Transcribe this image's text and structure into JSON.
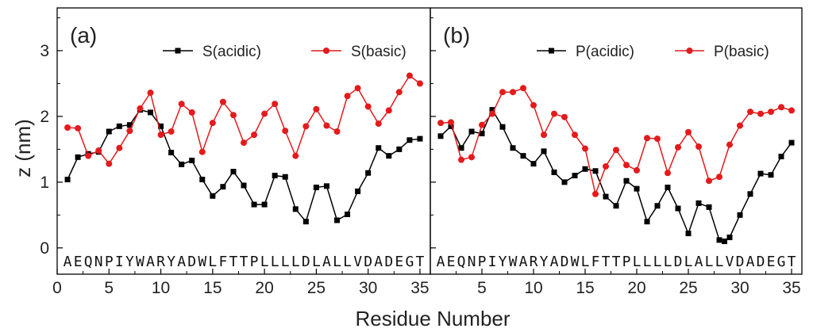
{
  "xlabel_shared": "Residue Number",
  "colors": {
    "acidic": "#000000",
    "basic": "#e41a1c",
    "frame": "#000000"
  },
  "chart_data": [
    {
      "type": "line",
      "panel_label": "(a)",
      "ylabel": "z (nm)",
      "xlim": [
        0,
        36
      ],
      "ylim": [
        -0.4,
        3.65
      ],
      "xticks": [
        0,
        5,
        10,
        15,
        20,
        25,
        30,
        35
      ],
      "yticks": [
        0,
        1,
        2,
        3
      ],
      "sequence": [
        "A",
        "E",
        "Q",
        "N",
        "P",
        "I",
        "Y",
        "W",
        "A",
        "R",
        "Y",
        "A",
        "D",
        "W",
        "L",
        "F",
        "T",
        "T",
        "P",
        "L",
        "L",
        "L",
        "L",
        "D",
        "L",
        "A",
        "L",
        "L",
        "V",
        "D",
        "A",
        "D",
        "E",
        "G",
        "T"
      ],
      "series": [
        {
          "name": "S(acidic)",
          "color": "#000000",
          "marker": "square",
          "x": [
            1,
            2,
            3,
            4,
            5,
            6,
            7,
            8,
            9,
            10,
            11,
            12,
            13,
            14,
            15,
            16,
            17,
            18,
            19,
            20,
            21,
            22,
            23,
            24,
            25,
            26,
            27,
            28,
            29,
            30,
            31,
            32,
            33,
            34,
            35
          ],
          "y": [
            1.04,
            1.38,
            1.43,
            1.46,
            1.77,
            1.85,
            1.87,
            2.1,
            2.06,
            1.85,
            1.45,
            1.27,
            1.33,
            1.04,
            0.79,
            0.93,
            1.16,
            0.95,
            0.66,
            0.66,
            1.1,
            1.08,
            0.59,
            0.4,
            0.92,
            0.94,
            0.42,
            0.51,
            0.86,
            1.14,
            1.52,
            1.4,
            1.5,
            1.64,
            1.66
          ]
        },
        {
          "name": "S(basic)",
          "color": "#e41a1c",
          "marker": "circle",
          "x": [
            1,
            2,
            3,
            4,
            5,
            6,
            7,
            8,
            9,
            10,
            11,
            12,
            13,
            14,
            15,
            16,
            17,
            18,
            19,
            20,
            21,
            22,
            23,
            24,
            25,
            26,
            27,
            28,
            29,
            30,
            31,
            32,
            33,
            34,
            35
          ],
          "y": [
            1.83,
            1.82,
            1.4,
            1.48,
            1.28,
            1.52,
            1.78,
            2.12,
            2.36,
            1.72,
            1.77,
            2.19,
            2.06,
            1.46,
            1.9,
            2.22,
            2.02,
            1.6,
            1.72,
            2.04,
            2.19,
            1.78,
            1.4,
            1.85,
            2.11,
            1.86,
            1.77,
            2.31,
            2.43,
            2.15,
            1.89,
            2.09,
            2.37,
            2.62,
            2.5
          ]
        }
      ]
    },
    {
      "type": "line",
      "panel_label": "(b)",
      "ylabel": "",
      "xlim": [
        0,
        36
      ],
      "ylim": [
        -0.4,
        3.65
      ],
      "xticks": [
        5,
        10,
        15,
        20,
        25,
        30,
        35
      ],
      "yticks": [
        0,
        1,
        2,
        3
      ],
      "sequence": [
        "A",
        "E",
        "Q",
        "N",
        "P",
        "I",
        "Y",
        "W",
        "A",
        "R",
        "Y",
        "A",
        "D",
        "W",
        "L",
        "F",
        "T",
        "T",
        "P",
        "L",
        "L",
        "L",
        "L",
        "D",
        "L",
        "A",
        "L",
        "L",
        "V",
        "D",
        "A",
        "D",
        "E",
        "G",
        "T"
      ],
      "series": [
        {
          "name": "P(acidic)",
          "color": "#000000",
          "marker": "square",
          "x": [
            1,
            2,
            3,
            4,
            5,
            6,
            7,
            8,
            9,
            10,
            11,
            12,
            13,
            14,
            15,
            16,
            17,
            18,
            19,
            20,
            21,
            22,
            23,
            24,
            25,
            26,
            27,
            28,
            28.5,
            29,
            30,
            31,
            32,
            33,
            34,
            35
          ],
          "y": [
            1.7,
            1.85,
            1.52,
            1.77,
            1.74,
            2.1,
            1.84,
            1.52,
            1.4,
            1.28,
            1.47,
            1.15,
            1.0,
            1.1,
            1.2,
            1.17,
            0.78,
            0.64,
            1.02,
            0.9,
            0.4,
            0.64,
            0.92,
            0.6,
            0.22,
            0.68,
            0.62,
            0.12,
            0.1,
            0.16,
            0.5,
            0.82,
            1.13,
            1.11,
            1.39,
            1.6
          ]
        },
        {
          "name": "P(basic)",
          "color": "#e41a1c",
          "marker": "circle",
          "x": [
            1,
            2,
            3,
            4,
            5,
            6,
            7,
            8,
            9,
            10,
            11,
            12,
            13,
            14,
            15,
            16,
            17,
            18,
            19,
            20,
            21,
            22,
            23,
            24,
            25,
            26,
            27,
            28,
            29,
            30,
            31,
            32,
            33,
            34,
            35
          ],
          "y": [
            1.9,
            1.91,
            1.34,
            1.38,
            1.87,
            2.04,
            2.37,
            2.37,
            2.43,
            2.17,
            1.72,
            2.04,
            1.99,
            1.72,
            1.51,
            0.82,
            1.24,
            1.49,
            1.26,
            1.18,
            1.67,
            1.66,
            1.14,
            1.53,
            1.76,
            1.54,
            1.02,
            1.08,
            1.57,
            1.86,
            2.07,
            2.04,
            2.07,
            2.14,
            2.09
          ]
        }
      ]
    }
  ]
}
